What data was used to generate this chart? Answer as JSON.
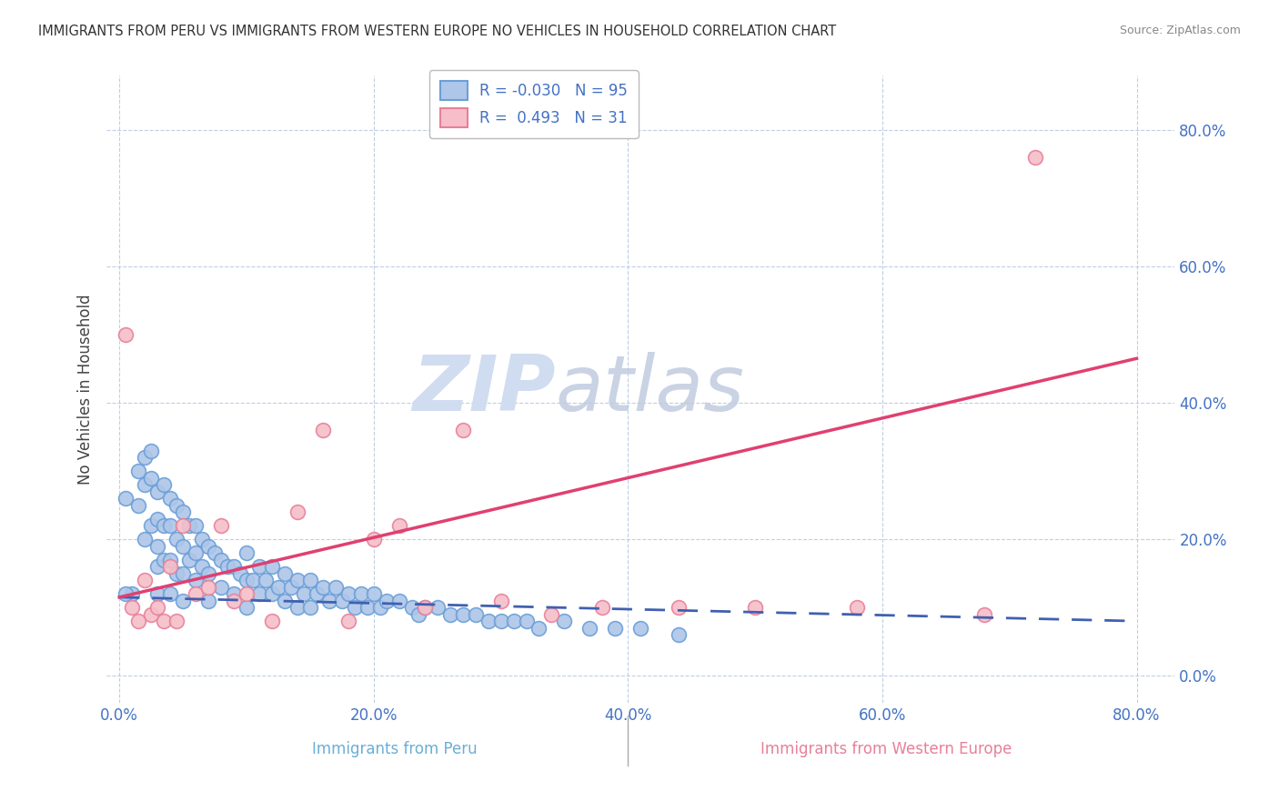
{
  "title": "IMMIGRANTS FROM PERU VS IMMIGRANTS FROM WESTERN EUROPE NO VEHICLES IN HOUSEHOLD CORRELATION CHART",
  "source": "Source: ZipAtlas.com",
  "xlabel_peru": "Immigrants from Peru",
  "xlabel_west": "Immigrants from Western Europe",
  "ylabel": "No Vehicles in Household",
  "xlim": [
    -0.01,
    0.83
  ],
  "ylim": [
    -0.04,
    0.88
  ],
  "x_ticks": [
    0.0,
    0.2,
    0.4,
    0.6,
    0.8
  ],
  "y_ticks": [
    0.0,
    0.2,
    0.4,
    0.6,
    0.8
  ],
  "x_tick_labels": [
    "0.0%",
    "20.0%",
    "40.0%",
    "60.0%",
    "80.0%"
  ],
  "y_tick_labels": [
    "0.0%",
    "20.0%",
    "40.0%",
    "60.0%",
    "80.0%"
  ],
  "blue_face": "#aec6e8",
  "blue_edge": "#6a9fd8",
  "pink_face": "#f5bec8",
  "pink_edge": "#e8809a",
  "line_blue_color": "#4060b0",
  "line_pink_color": "#e04070",
  "watermark_zip": "ZIP",
  "watermark_atlas": "atlas",
  "watermark_color": "#d0ddf0",
  "blue_scatter_x": [
    0.005,
    0.01,
    0.015,
    0.015,
    0.02,
    0.02,
    0.02,
    0.025,
    0.025,
    0.025,
    0.03,
    0.03,
    0.03,
    0.03,
    0.03,
    0.035,
    0.035,
    0.035,
    0.04,
    0.04,
    0.04,
    0.04,
    0.045,
    0.045,
    0.045,
    0.05,
    0.05,
    0.05,
    0.05,
    0.055,
    0.055,
    0.06,
    0.06,
    0.06,
    0.065,
    0.065,
    0.07,
    0.07,
    0.07,
    0.075,
    0.08,
    0.08,
    0.085,
    0.09,
    0.09,
    0.095,
    0.1,
    0.1,
    0.1,
    0.105,
    0.11,
    0.11,
    0.115,
    0.12,
    0.12,
    0.125,
    0.13,
    0.13,
    0.135,
    0.14,
    0.14,
    0.145,
    0.15,
    0.15,
    0.155,
    0.16,
    0.165,
    0.17,
    0.175,
    0.18,
    0.185,
    0.19,
    0.195,
    0.2,
    0.205,
    0.21,
    0.22,
    0.23,
    0.235,
    0.24,
    0.25,
    0.26,
    0.27,
    0.28,
    0.29,
    0.3,
    0.31,
    0.32,
    0.33,
    0.35,
    0.37,
    0.39,
    0.41,
    0.44,
    0.005
  ],
  "blue_scatter_y": [
    0.26,
    0.12,
    0.3,
    0.25,
    0.32,
    0.28,
    0.2,
    0.33,
    0.29,
    0.22,
    0.27,
    0.23,
    0.19,
    0.16,
    0.12,
    0.28,
    0.22,
    0.17,
    0.26,
    0.22,
    0.17,
    0.12,
    0.25,
    0.2,
    0.15,
    0.24,
    0.19,
    0.15,
    0.11,
    0.22,
    0.17,
    0.22,
    0.18,
    0.14,
    0.2,
    0.16,
    0.19,
    0.15,
    0.11,
    0.18,
    0.17,
    0.13,
    0.16,
    0.16,
    0.12,
    0.15,
    0.18,
    0.14,
    0.1,
    0.14,
    0.16,
    0.12,
    0.14,
    0.16,
    0.12,
    0.13,
    0.15,
    0.11,
    0.13,
    0.14,
    0.1,
    0.12,
    0.14,
    0.1,
    0.12,
    0.13,
    0.11,
    0.13,
    0.11,
    0.12,
    0.1,
    0.12,
    0.1,
    0.12,
    0.1,
    0.11,
    0.11,
    0.1,
    0.09,
    0.1,
    0.1,
    0.09,
    0.09,
    0.09,
    0.08,
    0.08,
    0.08,
    0.08,
    0.07,
    0.08,
    0.07,
    0.07,
    0.07,
    0.06,
    0.12
  ],
  "pink_scatter_x": [
    0.005,
    0.01,
    0.015,
    0.02,
    0.025,
    0.03,
    0.035,
    0.04,
    0.045,
    0.05,
    0.06,
    0.07,
    0.08,
    0.09,
    0.1,
    0.12,
    0.14,
    0.16,
    0.18,
    0.2,
    0.22,
    0.24,
    0.27,
    0.3,
    0.34,
    0.38,
    0.44,
    0.5,
    0.58,
    0.68,
    0.72
  ],
  "pink_scatter_y": [
    0.5,
    0.1,
    0.08,
    0.14,
    0.09,
    0.1,
    0.08,
    0.16,
    0.08,
    0.22,
    0.12,
    0.13,
    0.22,
    0.11,
    0.12,
    0.08,
    0.24,
    0.36,
    0.08,
    0.2,
    0.22,
    0.1,
    0.36,
    0.11,
    0.09,
    0.1,
    0.1,
    0.1,
    0.1,
    0.09,
    0.76
  ],
  "blue_line_x": [
    0.0,
    0.8
  ],
  "blue_line_y": [
    0.115,
    0.08
  ],
  "pink_line_x": [
    0.0,
    0.8
  ],
  "pink_line_y": [
    0.115,
    0.465
  ]
}
